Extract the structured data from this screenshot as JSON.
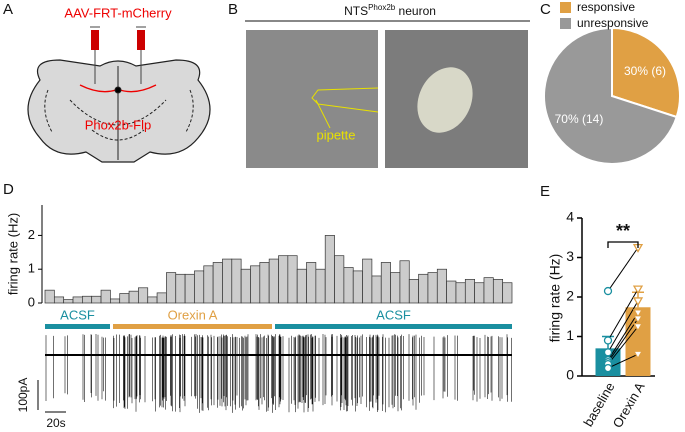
{
  "panel_labels": [
    "A",
    "B",
    "C",
    "D",
    "E"
  ],
  "panel_a": {
    "virus": "AAV-FRT-mCherry",
    "mouse": "Phox2b-Flp"
  },
  "panel_b": {
    "title_main": "NTS",
    "title_sup": "Phox2b",
    "title_rest": " neuron",
    "pipette": "pipette"
  },
  "panel_d": {
    "segments": [
      {
        "label": "ACSF",
        "color": "#1a8fa0"
      },
      {
        "label": "Orexin A",
        "color": "#e0a044"
      },
      {
        "label": "ACSF",
        "color": "#1a8fa0"
      }
    ],
    "scale_y": "100pA",
    "scale_x": "20s"
  },
  "chart_data": [
    {
      "type": "pie",
      "categories": [
        "responsive",
        "unresponsive"
      ],
      "values": [
        30,
        70
      ],
      "value_labels": [
        "30% (6)",
        "70% (14)"
      ],
      "colors": [
        "#e0a044",
        "#999999"
      ]
    },
    {
      "type": "bar",
      "ylabel": "firing rate (Hz)",
      "color": "#cccccc",
      "categories": [
        null,
        null,
        null,
        null,
        null,
        null,
        null,
        null,
        null,
        null,
        null,
        null,
        null,
        null,
        null,
        null,
        null,
        null,
        null,
        null,
        null,
        null,
        null,
        null,
        null,
        null,
        null,
        null,
        null,
        null,
        null,
        null,
        null,
        null,
        null,
        null,
        null,
        null,
        null,
        null,
        null,
        null,
        null,
        null,
        null,
        null,
        null,
        null,
        null,
        null
      ],
      "values": [
        0.38,
        0.18,
        0.1,
        0.18,
        0.2,
        0.2,
        0.38,
        0.12,
        0.28,
        0.35,
        0.45,
        0.18,
        0.3,
        0.9,
        0.85,
        0.85,
        0.95,
        1.1,
        1.2,
        1.3,
        1.3,
        1.0,
        1.1,
        1.2,
        1.3,
        1.4,
        1.4,
        1.0,
        1.2,
        1.0,
        2.0,
        1.4,
        1.05,
        0.95,
        1.3,
        0.8,
        1.2,
        0.9,
        1.25,
        0.7,
        0.85,
        0.9,
        1.0,
        0.65,
        0.6,
        0.7,
        0.6,
        0.75,
        0.7,
        0.6
      ],
      "ylim": [
        0,
        2.9
      ],
      "yticks": [
        0,
        1,
        2
      ]
    },
    {
      "type": "bar",
      "ylabel": "firing rate (Hz)",
      "categories": [
        "baseline",
        "Orexin A"
      ],
      "values": [
        0.7,
        1.74
      ],
      "errors": [
        0.3,
        0.38
      ],
      "colors": [
        "#1a8fa0",
        "#e0a044"
      ],
      "points": [
        [
          2.15,
          0.9,
          0.6,
          0.4,
          0.35,
          0.3,
          0.2
        ],
        [
          3.25,
          2.2,
          1.9,
          1.6,
          1.45,
          1.25,
          0.55
        ]
      ],
      "significance": "**",
      "ylim": [
        0,
        4
      ],
      "yticks": [
        0,
        1,
        2,
        3,
        4
      ]
    }
  ]
}
